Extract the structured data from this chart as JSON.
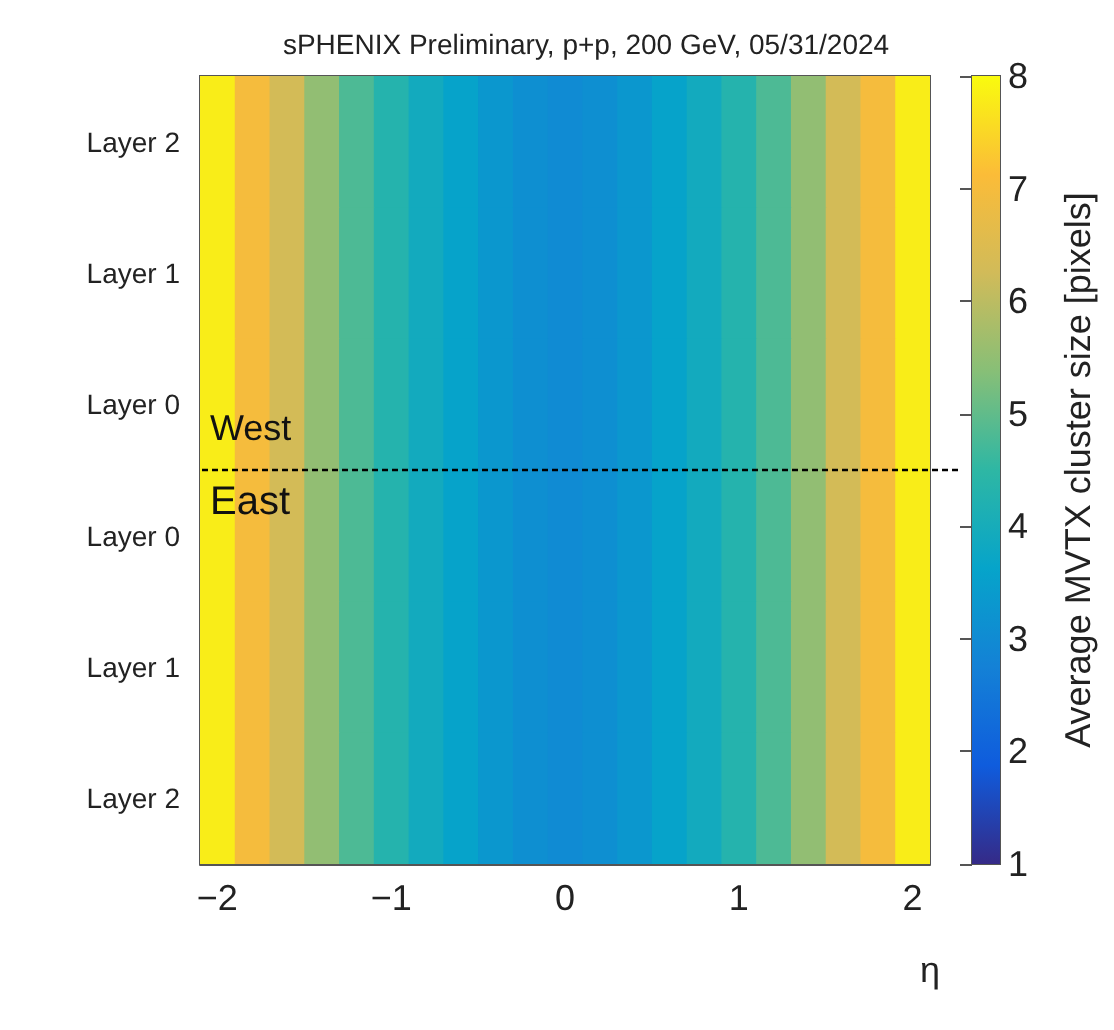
{
  "chart_data": {
    "type": "heatmap",
    "title": "sPHENIX Preliminary, p+p, 200 GeV, 05/31/2024",
    "xlabel": "η",
    "clabel": "Average MVTX cluster size [pixels]",
    "x": [
      -2.0,
      -1.8,
      -1.6,
      -1.4,
      -1.2,
      -1.0,
      -0.8,
      -0.6,
      -0.4,
      -0.2,
      0.0,
      0.2,
      0.4,
      0.6,
      0.8,
      1.0,
      1.2,
      1.4,
      1.6,
      1.8,
      2.0
    ],
    "xlim": [
      -2.1,
      2.1
    ],
    "xticks": [
      -2,
      -1,
      0,
      1,
      2
    ],
    "y_categories": [
      "Layer 2",
      "Layer 1",
      "Layer 0",
      "Layer 0",
      "Layer 1",
      "Layer 2"
    ],
    "cells": [
      [
        7.8,
        7.0,
        6.3,
        5.5,
        4.8,
        4.3,
        3.9,
        3.6,
        3.3,
        3.1,
        3.0,
        3.1,
        3.3,
        3.6,
        3.9,
        4.3,
        4.8,
        5.5,
        6.3,
        7.0,
        7.8
      ],
      [
        7.8,
        7.0,
        6.3,
        5.5,
        4.8,
        4.3,
        3.9,
        3.6,
        3.3,
        3.1,
        3.0,
        3.1,
        3.3,
        3.6,
        3.9,
        4.3,
        4.8,
        5.5,
        6.3,
        7.0,
        7.8
      ],
      [
        7.8,
        7.0,
        6.3,
        5.5,
        4.8,
        4.3,
        3.9,
        3.6,
        3.3,
        3.1,
        3.0,
        3.1,
        3.3,
        3.6,
        3.9,
        4.3,
        4.8,
        5.5,
        6.3,
        7.0,
        7.8
      ],
      [
        7.8,
        7.0,
        6.3,
        5.5,
        4.8,
        4.3,
        3.9,
        3.6,
        3.3,
        3.1,
        3.0,
        3.1,
        3.3,
        3.6,
        3.9,
        4.3,
        4.8,
        5.5,
        6.3,
        7.0,
        7.8
      ],
      [
        7.8,
        7.0,
        6.3,
        5.5,
        4.8,
        4.3,
        3.9,
        3.6,
        3.3,
        3.1,
        3.0,
        3.1,
        3.3,
        3.6,
        3.9,
        4.3,
        4.8,
        5.5,
        6.3,
        7.0,
        7.8
      ],
      [
        7.8,
        7.0,
        6.3,
        5.5,
        4.8,
        4.3,
        3.9,
        3.6,
        3.3,
        3.1,
        3.0,
        3.1,
        3.3,
        3.6,
        3.9,
        4.3,
        4.8,
        5.5,
        6.3,
        7.0,
        7.8
      ]
    ],
    "clim": [
      1,
      8
    ],
    "cticks": [
      1,
      2,
      3,
      4,
      5,
      6,
      7,
      8
    ],
    "annotations": [
      "West",
      "East"
    ]
  }
}
